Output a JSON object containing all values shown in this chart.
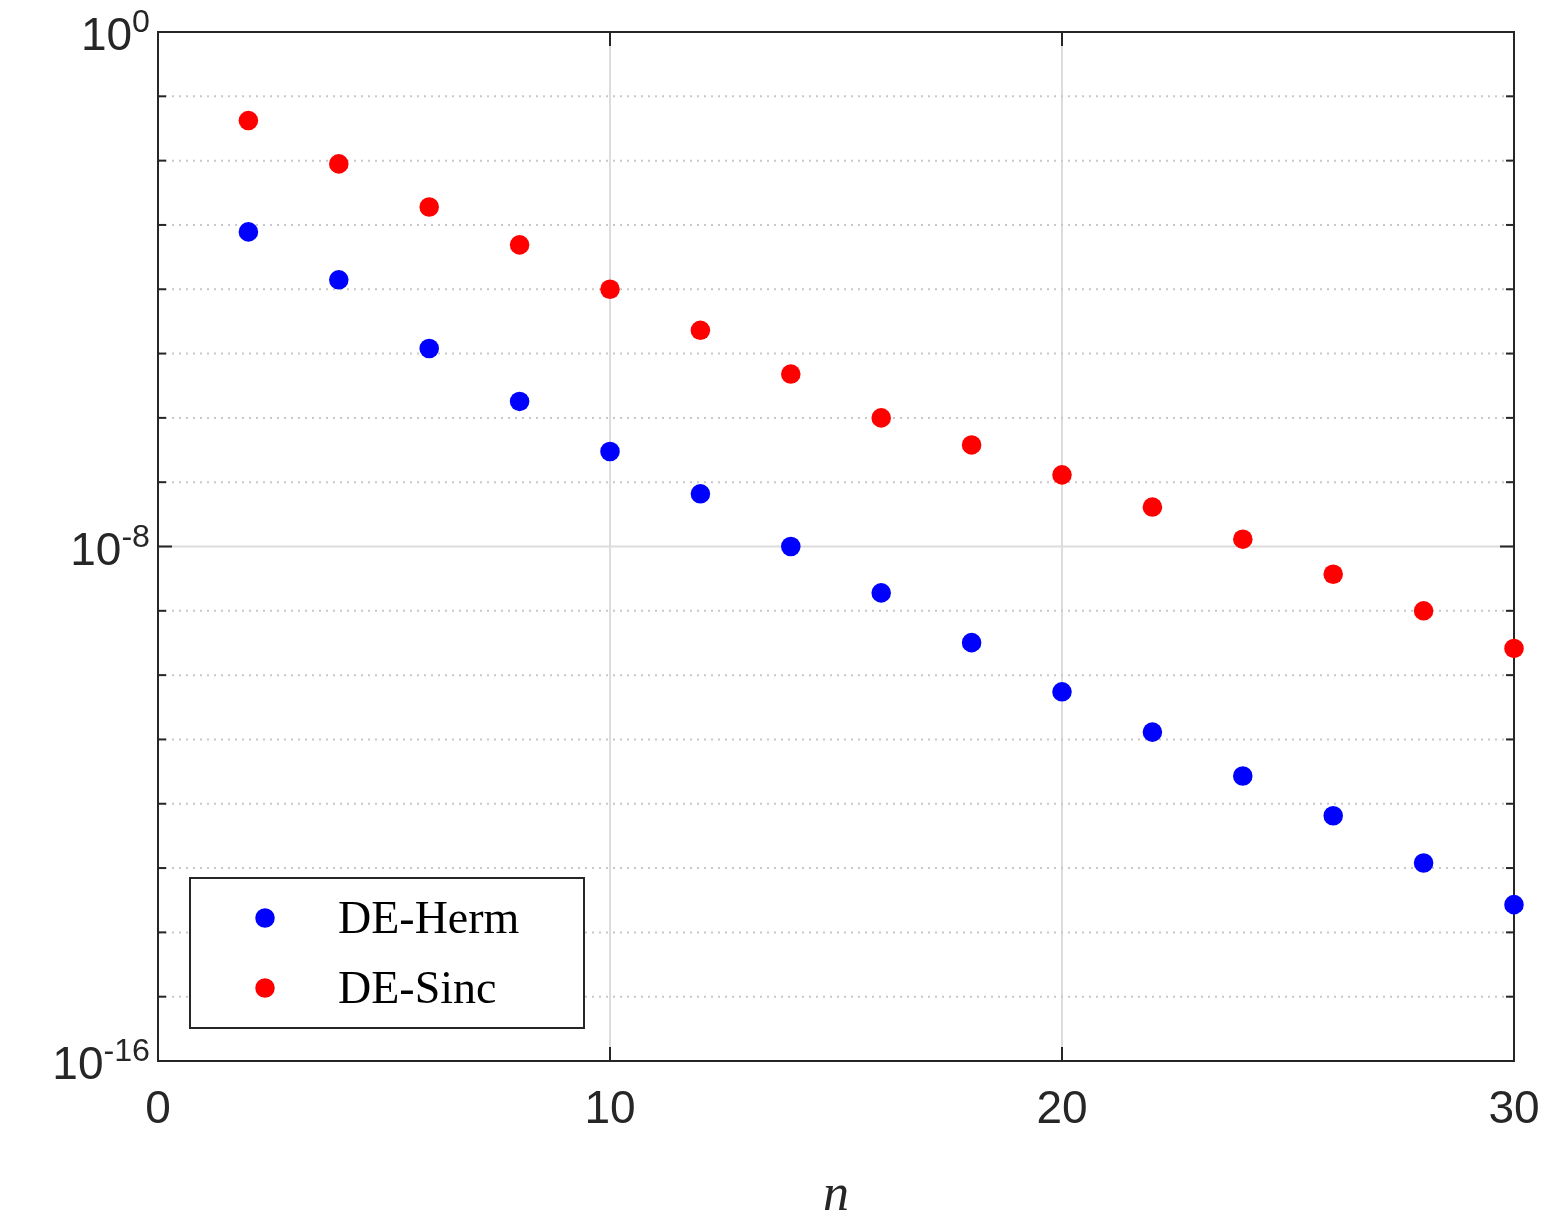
{
  "chart_data": {
    "type": "scatter",
    "xlabel": "n",
    "x": [
      2,
      4,
      6,
      8,
      10,
      12,
      14,
      16,
      18,
      20,
      22,
      24,
      26,
      28,
      30
    ],
    "series": [
      {
        "name": "DE-Herm",
        "color": "#0000ff",
        "values": [
          0.00078,
          0.00014,
          1.2e-05,
          1.8e-06,
          3e-07,
          6.6e-08,
          1e-08,
          1.9e-09,
          3.2e-10,
          5.5e-11,
          1.3e-11,
          2.7e-12,
          6.5e-13,
          1.2e-13,
          2.7e-14
        ]
      },
      {
        "name": "DE-Sinc",
        "color": "#ff0000",
        "values": [
          0.042,
          0.0089,
          0.0019,
          0.00049,
          0.0001,
          2.3e-05,
          4.8e-06,
          1e-06,
          3.8e-07,
          1.3e-07,
          4.1e-08,
          1.3e-08,
          3.7e-09,
          1e-09,
          2.6e-10
        ]
      }
    ],
    "log": "y",
    "xlim": [
      0,
      30
    ],
    "xticks": [
      0,
      10,
      20,
      30
    ],
    "ylim": [
      1e-16,
      1
    ],
    "yticks": [
      {
        "value": 1,
        "label": "10$^{0}$"
      },
      {
        "value": 0.1,
        "label": null
      },
      {
        "value": 0.01,
        "label": null
      },
      {
        "value": 0.001,
        "label": null
      },
      {
        "value": 0.0001,
        "label": null
      },
      {
        "value": 1e-05,
        "label": null
      },
      {
        "value": 1e-06,
        "label": null
      },
      {
        "value": 1e-07,
        "label": null
      },
      {
        "value": 1e-08,
        "label": "10$^{-8}$"
      },
      {
        "value": 1e-09,
        "label": null
      },
      {
        "value": 1e-10,
        "label": null
      },
      {
        "value": 1e-11,
        "label": null
      },
      {
        "value": 1e-12,
        "label": null
      },
      {
        "value": 1e-13,
        "label": null
      },
      {
        "value": 1e-14,
        "label": null
      },
      {
        "value": 1e-15,
        "label": null
      },
      {
        "value": 1e-16,
        "label": "10$^{-16}$"
      }
    ],
    "grid": true,
    "legend": "bottom left",
    "marker": "circle"
  }
}
